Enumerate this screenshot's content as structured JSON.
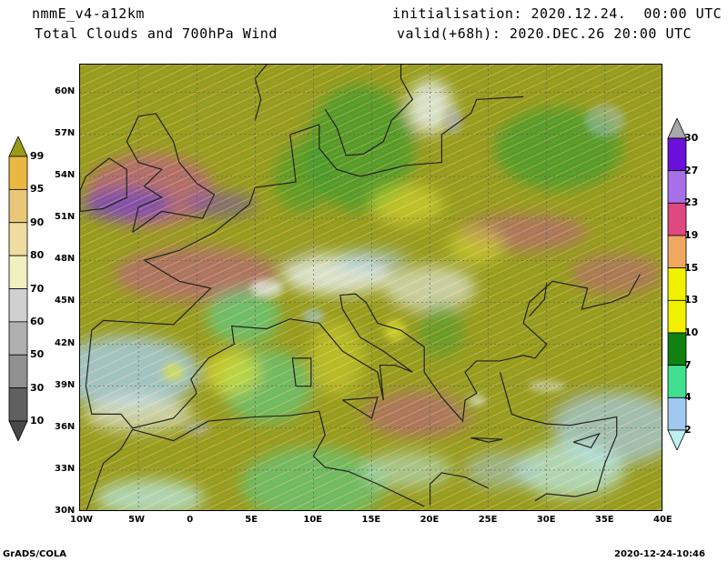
{
  "header": {
    "model": "nmmE_v4-a12km",
    "product": "Total Clouds and 700hPa Wind",
    "init": "initialisation: 2020.12.24.  00:00 UTC",
    "valid": "valid(+68h): 2020.DEC.26 20:00 UTC"
  },
  "map": {
    "lon_labels": [
      "10W",
      "5W",
      "0",
      "5E",
      "10E",
      "15E",
      "20E",
      "25E",
      "30E",
      "35E",
      "40E"
    ],
    "lat_labels": [
      "60N",
      "57N",
      "54N",
      "51N",
      "48N",
      "45N",
      "42N",
      "39N",
      "36N",
      "33N",
      "30N"
    ],
    "lon_range": [
      -10,
      40
    ],
    "lat_range": [
      30,
      62
    ],
    "colors": {
      "olive": "#9a9a1a",
      "green": "#3f9a2a",
      "yellow": "#e8e830",
      "magenta": "#c05888",
      "purple": "#7040c0",
      "lightblue": "#a8cce8",
      "cyan": "#bfeef0",
      "aqua": "#50d8a0",
      "gray": "#b0b0b0",
      "white": "#eef2f5"
    }
  },
  "cloud_colorbar": {
    "labels": [
      "99",
      "95",
      "90",
      "80",
      "70",
      "60",
      "50",
      "30",
      "10"
    ],
    "colors": [
      "#9a9a1a",
      "#e8b840",
      "#e8c878",
      "#f0dca0",
      "#f0f0c0",
      "#d0d0d0",
      "#b0b0b0",
      "#909090",
      "#606060",
      "#484848"
    ]
  },
  "wind_colorbar": {
    "labels": [
      "30",
      "27",
      "23",
      "19",
      "15",
      "13",
      "10",
      "7",
      "4",
      "2"
    ],
    "colors": [
      "#a8a8a8",
      "#6a10d8",
      "#a870e8",
      "#e04880",
      "#f0a860",
      "#f0f000",
      "#f0f000",
      "#108010",
      "#40e090",
      "#a0c8f0",
      "#c0f0f0"
    ]
  },
  "footer": {
    "left": "GrADS/COLA",
    "right": "2020-12-24-10:46"
  }
}
